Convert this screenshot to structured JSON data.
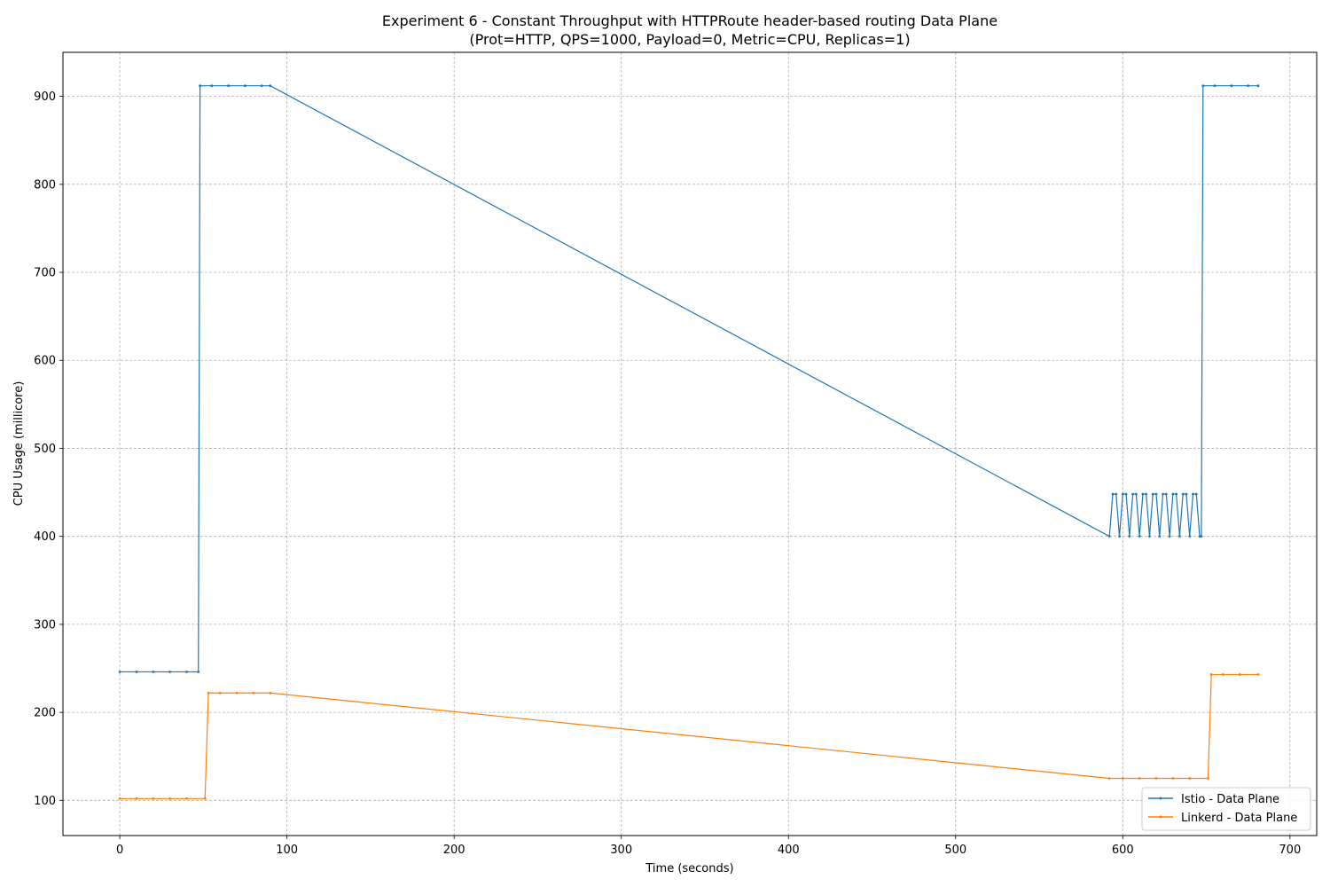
{
  "chart_data": {
    "type": "line",
    "title": "Experiment 6 - Constant Throughput with HTTPRoute header-based routing Data Plane",
    "subtitle": "(Prot=HTTP, QPS=1000, Payload=0, Metric=CPU, Replicas=1)",
    "xlabel": "Time (seconds)",
    "ylabel": "CPU Usage (millicore)",
    "xlim": [
      -34,
      716
    ],
    "ylim": [
      60,
      950
    ],
    "xticks": [
      0,
      100,
      200,
      300,
      400,
      500,
      600,
      700
    ],
    "yticks": [
      100,
      200,
      300,
      400,
      500,
      600,
      700,
      800,
      900
    ],
    "grid": true,
    "legend_position": "lower-right",
    "series": [
      {
        "name": "Istio - Data Plane",
        "color": "#1f77b4",
        "points": [
          [
            0,
            246
          ],
          [
            10,
            246
          ],
          [
            20,
            246
          ],
          [
            30,
            246
          ],
          [
            40,
            246
          ],
          [
            47,
            246
          ],
          [
            48,
            912
          ],
          [
            55,
            912
          ],
          [
            65,
            912
          ],
          [
            75,
            912
          ],
          [
            85,
            912
          ],
          [
            90,
            912
          ],
          [
            592,
            400
          ],
          [
            594,
            448
          ],
          [
            596,
            448
          ],
          [
            598,
            400
          ],
          [
            600,
            448
          ],
          [
            602,
            448
          ],
          [
            604,
            400
          ],
          [
            606,
            448
          ],
          [
            608,
            448
          ],
          [
            610,
            400
          ],
          [
            612,
            448
          ],
          [
            614,
            448
          ],
          [
            616,
            400
          ],
          [
            618,
            448
          ],
          [
            620,
            448
          ],
          [
            622,
            400
          ],
          [
            624,
            448
          ],
          [
            626,
            448
          ],
          [
            628,
            400
          ],
          [
            630,
            448
          ],
          [
            632,
            448
          ],
          [
            634,
            400
          ],
          [
            636,
            448
          ],
          [
            638,
            448
          ],
          [
            640,
            400
          ],
          [
            642,
            448
          ],
          [
            644,
            448
          ],
          [
            646,
            400
          ],
          [
            647,
            400
          ],
          [
            648,
            912
          ],
          [
            655,
            912
          ],
          [
            665,
            912
          ],
          [
            675,
            912
          ],
          [
            681,
            912
          ]
        ]
      },
      {
        "name": "Linkerd - Data Plane",
        "color": "#ff7f0e",
        "points": [
          [
            0,
            102
          ],
          [
            10,
            102
          ],
          [
            20,
            102
          ],
          [
            30,
            102
          ],
          [
            40,
            102
          ],
          [
            51,
            102
          ],
          [
            53,
            222
          ],
          [
            60,
            222
          ],
          [
            70,
            222
          ],
          [
            80,
            222
          ],
          [
            90,
            222
          ],
          [
            592,
            125
          ],
          [
            600,
            125
          ],
          [
            610,
            125
          ],
          [
            620,
            125
          ],
          [
            630,
            125
          ],
          [
            640,
            125
          ],
          [
            651,
            125
          ],
          [
            653,
            243
          ],
          [
            660,
            243
          ],
          [
            670,
            243
          ],
          [
            681,
            243
          ]
        ]
      }
    ]
  }
}
